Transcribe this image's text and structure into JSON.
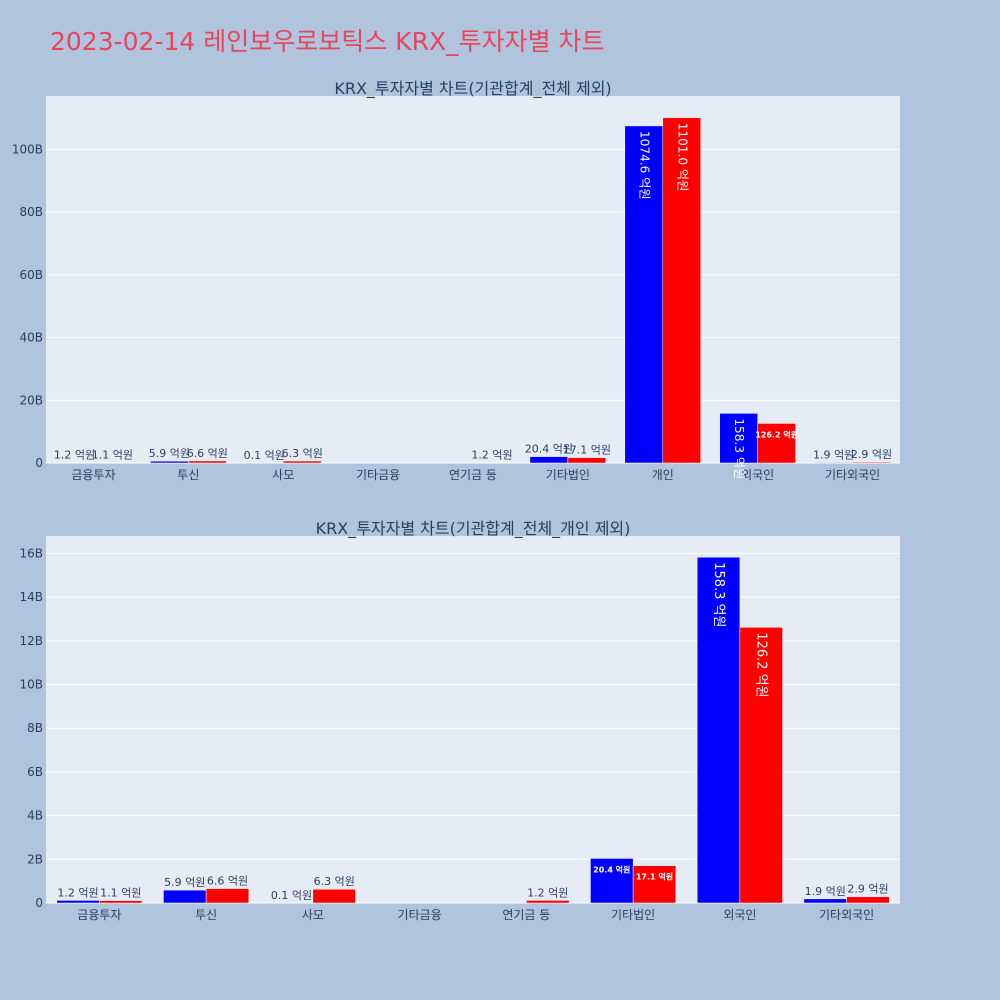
{
  "page": {
    "title": "2023-02-14 레인보우로보틱스 KRX_투자자별 차트"
  },
  "colors": {
    "buy": "#0000ff",
    "sell": "#ff0000",
    "plot_bg": "#e5ecf6",
    "paper_bg": "#b0c4de",
    "title": "#e8455a"
  },
  "chart_data": [
    {
      "type": "bar",
      "title": "KRX_투자자별 차트(기관합계_전체 제외)",
      "categories": [
        "금융투자",
        "투신",
        "사모",
        "기타금융",
        "연기금 등",
        "기타법인",
        "개인",
        "외국인",
        "기타외국인"
      ],
      "series": [
        {
          "values": [
            0.12,
            0.59,
            0.01,
            0,
            0,
            2.04,
            107.46,
            15.83,
            0.19
          ],
          "labels": [
            "1.2 억원",
            "5.9 억원",
            "0.1 억원",
            "",
            "",
            "20.4 억원",
            "1074.6 억원",
            "158.3 억원",
            "1.9 억원"
          ]
        },
        {
          "values": [
            0.11,
            0.66,
            0.63,
            0,
            0.12,
            1.71,
            110.1,
            12.62,
            0.29
          ],
          "labels": [
            "1.1 억원",
            "6.6 억원",
            "6.3 억원",
            "",
            "1.2 억원",
            "17.1 억원",
            "1101.0 억원",
            "126.2 억원",
            "2.9 억원"
          ]
        }
      ],
      "ylim": [
        0,
        117
      ],
      "yticks": [
        0,
        20,
        40,
        60,
        80,
        100
      ],
      "ytick_labels": [
        "0",
        "20B",
        "40B",
        "60B",
        "80B",
        "100B"
      ],
      "grid": true,
      "legend": "none"
    },
    {
      "type": "bar",
      "title": "KRX_투자자별 차트(기관합계_전체_개인 제외)",
      "categories": [
        "금융투자",
        "투신",
        "사모",
        "기타금융",
        "연기금 등",
        "기타법인",
        "외국인",
        "기타외국인"
      ],
      "series": [
        {
          "values": [
            0.12,
            0.59,
            0.01,
            0,
            0,
            2.04,
            15.83,
            0.19
          ],
          "labels": [
            "1.2 억원",
            "5.9 억원",
            "0.1 억원",
            "",
            "",
            "20.4 억원",
            "158.3 억원",
            "1.9 억원"
          ]
        },
        {
          "values": [
            0.11,
            0.66,
            0.63,
            0,
            0.12,
            1.71,
            12.62,
            0.29
          ],
          "labels": [
            "1.1 억원",
            "6.6 억원",
            "6.3 억원",
            "",
            "1.2 억원",
            "17.1 억원",
            "126.2 억원",
            "2.9 억원"
          ]
        }
      ],
      "ylim": [
        0,
        16.8
      ],
      "yticks": [
        0,
        2,
        4,
        6,
        8,
        10,
        12,
        14,
        16
      ],
      "ytick_labels": [
        "0",
        "2B",
        "4B",
        "6B",
        "8B",
        "10B",
        "12B",
        "14B",
        "16B"
      ],
      "grid": true,
      "legend": "none"
    }
  ]
}
